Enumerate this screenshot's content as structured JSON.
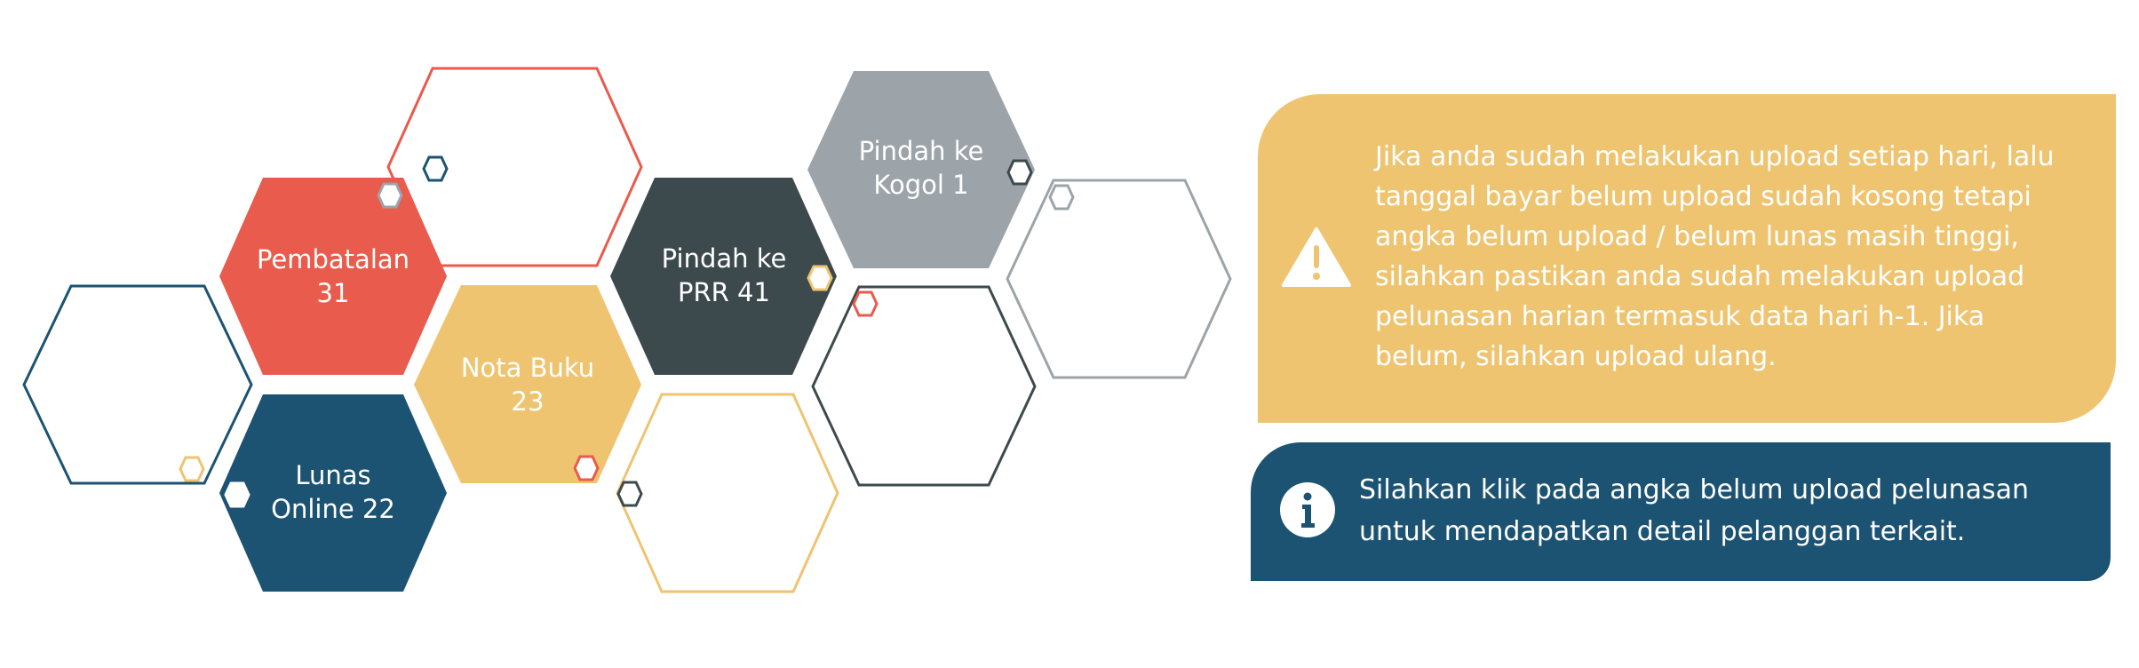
{
  "hex_tiles": [
    {
      "id": "pembatalan",
      "lines": [
        "Pembatalan",
        "31"
      ],
      "color": "#e95b4c"
    },
    {
      "id": "nota-buku",
      "lines": [
        "Nota Buku",
        "23"
      ],
      "color": "#efc471"
    },
    {
      "id": "lunas-online",
      "lines": [
        "Lunas",
        "Online 22"
      ],
      "color": "#1c5373"
    },
    {
      "id": "pindah-prr",
      "lines": [
        "Pindah ke",
        "PRR 41"
      ],
      "color": "#3d4a4d"
    },
    {
      "id": "pindah-kogol",
      "lines": [
        "Pindah ke",
        "Kogol 1"
      ],
      "color": "#9ca4aa"
    }
  ],
  "outline_colors": {
    "red": "#e95b4c",
    "navy": "#1c5373",
    "yellow": "#efc471",
    "charcoal": "#3d4a4d",
    "gray": "#9ca4aa"
  },
  "warning_panel": {
    "icon": "warning-triangle-icon",
    "color": "#efc471",
    "lines": [
      "Jika anda sudah melakukan upload setiap hari, lalu",
      "tanggal bayar belum upload sudah kosong tetapi",
      "angka belum upload / belum lunas masih tinggi,",
      "silahkan pastikan anda sudah melakukan upload",
      "pelunasan harian termasuk  data hari h-1. Jika",
      "belum, silahkan upload ulang."
    ]
  },
  "info_panel": {
    "icon": "info-icon",
    "color": "#1c5373",
    "lines": [
      "Silahkan klik pada angka belum upload pelunasan",
      "untuk mendapatkan detail pelanggan terkait."
    ]
  }
}
